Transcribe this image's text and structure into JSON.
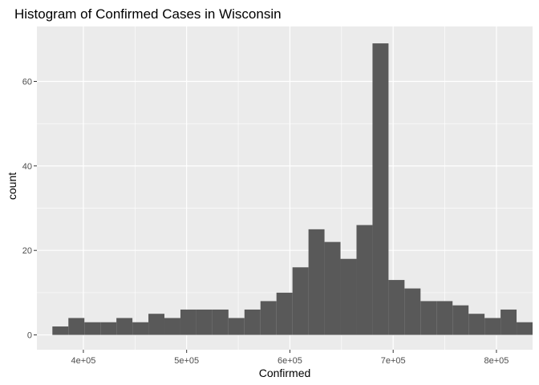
{
  "chart_data": {
    "type": "bar",
    "title": "Histogram of Confirmed Cases in Wisconsin",
    "xlabel": "Confirmed",
    "ylabel": "count",
    "xlim": [
      355000,
      835000
    ],
    "ylim": [
      -3.5,
      73
    ],
    "x_ticks": [
      {
        "value": 400000,
        "label": "4e+05"
      },
      {
        "value": 500000,
        "label": "5e+05"
      },
      {
        "value": 600000,
        "label": "6e+05"
      },
      {
        "value": 700000,
        "label": "7e+05"
      },
      {
        "value": 800000,
        "label": "8e+05"
      }
    ],
    "y_ticks": [
      {
        "value": 0,
        "label": "0"
      },
      {
        "value": 20,
        "label": "20"
      },
      {
        "value": 40,
        "label": "40"
      },
      {
        "value": 60,
        "label": "60"
      }
    ],
    "bin_width": 15500,
    "bins_start": 370000,
    "values": [
      2,
      4,
      3,
      3,
      4,
      3,
      5,
      4,
      6,
      6,
      6,
      4,
      6,
      8,
      10,
      16,
      25,
      22,
      18,
      26,
      69,
      13,
      11,
      8,
      8,
      7,
      5,
      4,
      6,
      3
    ],
    "grid": true,
    "legend": "none",
    "colors": {
      "panel_background": "#ebebeb",
      "grid_major": "#ffffff",
      "bar_fill": "#595959",
      "tick_text": "#4d4d4d",
      "tick_mark": "#333333"
    }
  }
}
